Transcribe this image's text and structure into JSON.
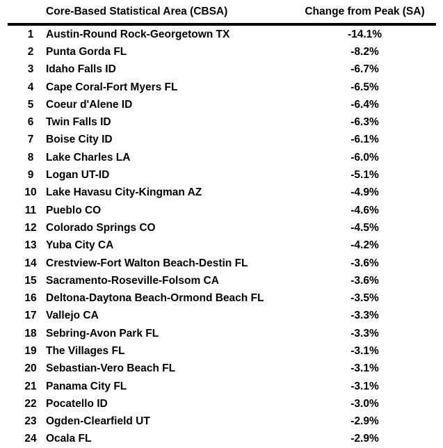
{
  "chart_data": {
    "type": "table",
    "title": "",
    "columns": [
      "",
      "Core-Based Statistical Area (CBSA)",
      "Change from Peak (SA)"
    ],
    "rows": [
      [
        "1",
        "Austin-Round Rock-Georgetown TX",
        "-14.1%"
      ],
      [
        "2",
        "Punta Gorda FL",
        "-8.2%"
      ],
      [
        "3",
        "Idaho Falls ID",
        "-6.7%"
      ],
      [
        "4",
        "Cape Coral-Fort Myers FL",
        "-6.5%"
      ],
      [
        "5",
        "Coeur d'Alene ID",
        "-6.4%"
      ],
      [
        "6",
        "Twin Falls ID",
        "-6.3%"
      ],
      [
        "7",
        "Boise City ID",
        "-6.1%"
      ],
      [
        "8",
        "Lake Charles LA",
        "-6.0%"
      ],
      [
        "9",
        "Logan UT-ID",
        "-5.1%"
      ],
      [
        "10",
        "Lake Havasu City-Kingman AZ",
        "-4.9%"
      ],
      [
        "11",
        "Pueblo CO",
        "-4.6%"
      ],
      [
        "12",
        "Colorado Springs CO",
        "-4.5%"
      ],
      [
        "13",
        "Yuba City CA",
        "-4.2%"
      ],
      [
        "14",
        "Crestview-Fort Walton Beach-Destin FL",
        "-3.6%"
      ],
      [
        "15",
        "Sacramento-Roseville-Folsom CA",
        "-3.6%"
      ],
      [
        "16",
        "Deltona-Daytona Beach-Ormond Beach FL",
        "-3.5%"
      ],
      [
        "17",
        "Vallejo CA",
        "-3.3%"
      ],
      [
        "18",
        "Sebring-Avon Park FL",
        "-3.3%"
      ],
      [
        "19",
        "The Villages FL",
        "-3.1%"
      ],
      [
        "20",
        "Sebastian-Vero Beach FL",
        "-3.1%"
      ],
      [
        "21",
        "Panama City FL",
        "-3.1%"
      ],
      [
        "22",
        "Pocatello ID",
        "-3.0%"
      ],
      [
        "23",
        "Ogden-Clearfield UT",
        "-2.9%"
      ],
      [
        "24",
        "Ocala FL",
        "-2.9%"
      ]
    ],
    "layout": {
      "text_color": "#000000",
      "background": "#ffffff",
      "header_rule_color": "#000000",
      "last_row_clipped": true
    }
  }
}
